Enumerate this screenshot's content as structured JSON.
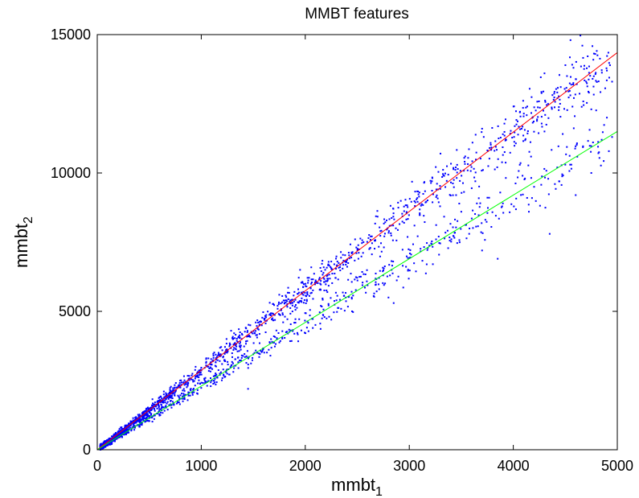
{
  "chart_data": {
    "type": "scatter",
    "title": "MMBT features",
    "xlabel": {
      "base": "mmbt",
      "sub": "1"
    },
    "ylabel": {
      "base": "mmbt",
      "sub": "2"
    },
    "xlim": [
      0,
      5000
    ],
    "ylim": [
      0,
      15000
    ],
    "xticks": [
      "0",
      "1000",
      "2000",
      "3000",
      "4000",
      "5000"
    ],
    "yticks": [
      "0",
      "5000",
      "10000",
      "15000"
    ],
    "grid": false,
    "colors": {
      "points": "#0000ff",
      "upper_fit": "#ff0000",
      "lower_fit": "#00ff00"
    },
    "clusters": [
      {
        "slope": 2.87,
        "spread": 0.045,
        "share": 0.65
      },
      {
        "slope": 2.3,
        "spread": 0.05,
        "share": 0.35
      }
    ],
    "fit_lines": [
      {
        "x": [
          0,
          5000
        ],
        "y": [
          0,
          14350
        ]
      },
      {
        "x": [
          0,
          5000
        ],
        "y": [
          0,
          11500
        ]
      }
    ],
    "outliers": [
      {
        "x": 4550,
        "y": 14800
      },
      {
        "x": 4300,
        "y": 13600
      },
      {
        "x": 4900,
        "y": 13700
      },
      {
        "x": 4950,
        "y": 13300
      },
      {
        "x": 4700,
        "y": 13300
      },
      {
        "x": 4450,
        "y": 12500
      },
      {
        "x": 4750,
        "y": 12300
      },
      {
        "x": 3700,
        "y": 11600
      },
      {
        "x": 3900,
        "y": 11400
      },
      {
        "x": 4300,
        "y": 11500
      },
      {
        "x": 4900,
        "y": 12000
      },
      {
        "x": 4950,
        "y": 11300
      },
      {
        "x": 4500,
        "y": 10300
      },
      {
        "x": 4750,
        "y": 10000
      },
      {
        "x": 4400,
        "y": 9600
      },
      {
        "x": 4600,
        "y": 9200
      },
      {
        "x": 3300,
        "y": 10700
      },
      {
        "x": 3450,
        "y": 9200
      },
      {
        "x": 3650,
        "y": 8900
      },
      {
        "x": 3900,
        "y": 8900
      },
      {
        "x": 4150,
        "y": 8600
      },
      {
        "x": 3500,
        "y": 8600
      },
      {
        "x": 3700,
        "y": 7200
      },
      {
        "x": 4350,
        "y": 7800
      },
      {
        "x": 3850,
        "y": 6900
      },
      {
        "x": 3050,
        "y": 8100
      },
      {
        "x": 2950,
        "y": 8200
      },
      {
        "x": 2800,
        "y": 5500
      },
      {
        "x": 2850,
        "y": 5300
      },
      {
        "x": 2250,
        "y": 6800
      },
      {
        "x": 2300,
        "y": 5400
      },
      {
        "x": 2150,
        "y": 5200
      },
      {
        "x": 2250,
        "y": 4700
      },
      {
        "x": 2450,
        "y": 5000
      },
      {
        "x": 1750,
        "y": 5600
      },
      {
        "x": 1950,
        "y": 6500
      },
      {
        "x": 1450,
        "y": 2200
      },
      {
        "x": 4200,
        "y": 9500
      },
      {
        "x": 4850,
        "y": 11200
      }
    ]
  }
}
